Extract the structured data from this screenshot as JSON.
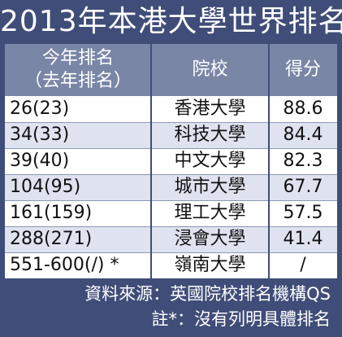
{
  "title": "2013年本港大學世界排名",
  "header": {
    "rank_line1": "今年排名",
    "rank_line2": "（去年排名）",
    "school": "院校",
    "score": "得分"
  },
  "rows": [
    {
      "rank": "26(23)",
      "school": "香港大學",
      "score": "88.6"
    },
    {
      "rank": "34(33)",
      "school": "科技大學",
      "score": "84.4"
    },
    {
      "rank": "39(40)",
      "school": "中文大學",
      "score": "82.3"
    },
    {
      "rank": "104(95)",
      "school": "城市大學",
      "score": "67.7"
    },
    {
      "rank": "161(159)",
      "school": "理工大學",
      "score": "57.5"
    },
    {
      "rank": "288(271)",
      "school": "浸會大學",
      "score": "41.4"
    },
    {
      "rank": "551-600(/) *",
      "school": "嶺南大學",
      "score": "/"
    }
  ],
  "footnotes": {
    "source": "資料來源：英國院校排名機構QS",
    "note": "註*：沒有列明具體排名"
  },
  "colors": {
    "frame": "#3f4d78",
    "header": "#7a86a6",
    "row_alt": "#dfe3ef"
  }
}
